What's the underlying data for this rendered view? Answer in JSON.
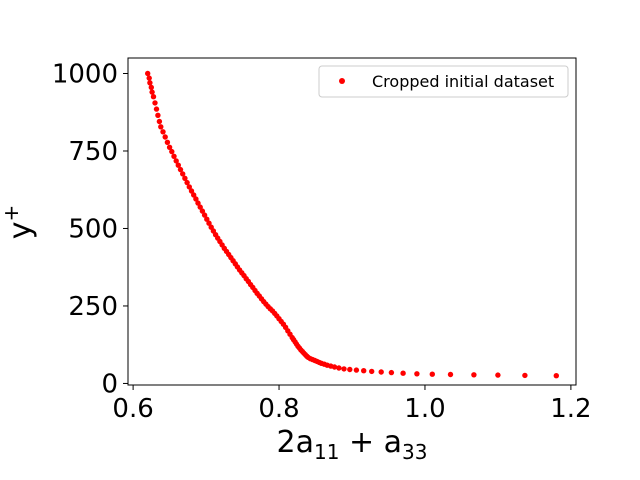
{
  "chart_data": {
    "type": "scatter",
    "xlabel_parts": {
      "base": "2a",
      "sub1": "11",
      "plus": " + a",
      "sub2": "33"
    },
    "ylabel_parts": {
      "base": "y",
      "sup": "+"
    },
    "xlim": [
      0.593,
      1.207
    ],
    "ylim": [
      -5,
      1050
    ],
    "xticks": [
      0.6,
      0.8,
      1.0,
      1.2
    ],
    "xtick_labels": [
      "0.6",
      "0.8",
      "1.0",
      "1.2"
    ],
    "yticks": [
      0,
      250,
      500,
      750,
      1000
    ],
    "ytick_labels": [
      "0",
      "250",
      "500",
      "750",
      "1000"
    ],
    "grid": false,
    "legend_position": "top-right",
    "series": [
      {
        "name": "Cropped initial dataset",
        "color": "#ff0000",
        "x": [
          0.62,
          0.622,
          0.623,
          0.625,
          0.626,
          0.628,
          0.63,
          0.632,
          0.634,
          0.636,
          0.638,
          0.641,
          0.644,
          0.647,
          0.65,
          0.653,
          0.656,
          0.659,
          0.662,
          0.665,
          0.668,
          0.671,
          0.674,
          0.677,
          0.68,
          0.683,
          0.686,
          0.689,
          0.692,
          0.695,
          0.698,
          0.701,
          0.704,
          0.707,
          0.71,
          0.713,
          0.716,
          0.719,
          0.722,
          0.725,
          0.728,
          0.731,
          0.734,
          0.737,
          0.74,
          0.743,
          0.746,
          0.749,
          0.752,
          0.755,
          0.758,
          0.761,
          0.764,
          0.767,
          0.77,
          0.773,
          0.776,
          0.779,
          0.782,
          0.785,
          0.788,
          0.791,
          0.794,
          0.797,
          0.8,
          0.803,
          0.806,
          0.809,
          0.812,
          0.815,
          0.818,
          0.82,
          0.822,
          0.824,
          0.826,
          0.828,
          0.83,
          0.832,
          0.834,
          0.836,
          0.838,
          0.84,
          0.843,
          0.846,
          0.849,
          0.852,
          0.855,
          0.858,
          0.862,
          0.866,
          0.871,
          0.876,
          0.882,
          0.889,
          0.897,
          0.906,
          0.916,
          0.927,
          0.94,
          0.954,
          0.97,
          0.989,
          1.01,
          1.035,
          1.067,
          1.1,
          1.137,
          1.18
        ],
        "y": [
          1000,
          985,
          970,
          955,
          940,
          925,
          905,
          885,
          865,
          845,
          828,
          812,
          795,
          778,
          762,
          748,
          733,
          718,
          704,
          690,
          676,
          662,
          648,
          634,
          621,
          608,
          595,
          582,
          569,
          556,
          543,
          530,
          517,
          504,
          492,
          480,
          469,
          458,
          447,
          436,
          426,
          416,
          406,
          396,
          386,
          376,
          366,
          357,
          348,
          338,
          329,
          319,
          310,
          300,
          291,
          282,
          273,
          264,
          256,
          248,
          241,
          234,
          226,
          218,
          209,
          200,
          191,
          181,
          170,
          159,
          148,
          141,
          134,
          127,
          120,
          114,
          108,
          103,
          98,
          93,
          88,
          84,
          80,
          77,
          74,
          71,
          68,
          65,
          62,
          59,
          56,
          53,
          50,
          47,
          45,
          43,
          41,
          39,
          37,
          35,
          33,
          31,
          30,
          29,
          28,
          27,
          26,
          25
        ]
      }
    ]
  }
}
